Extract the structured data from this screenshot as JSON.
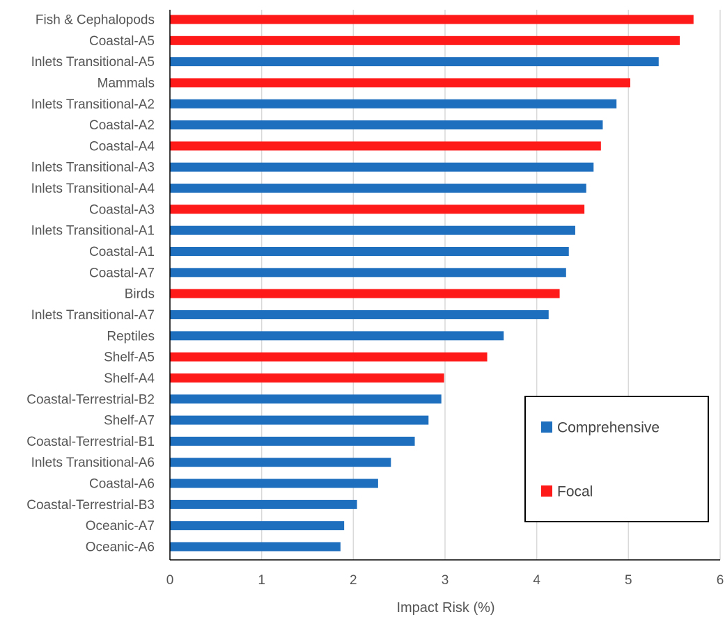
{
  "chart_data": {
    "type": "bar",
    "orientation": "horizontal",
    "title": "",
    "xlabel": "Impact Risk (%)",
    "ylabel": "",
    "xlim": [
      0,
      6
    ],
    "xticks": [
      0,
      1,
      2,
      3,
      4,
      5,
      6
    ],
    "grid": "vertical",
    "legend": {
      "placement": "bottom-right",
      "entries": [
        {
          "name": "Comprehensive",
          "color": "#1f6fbf"
        },
        {
          "name": "Focal",
          "color": "#ff1a1a"
        }
      ]
    },
    "categories": [
      "Fish & Cephalopods",
      "Coastal-A5",
      "Inlets Transitional-A5",
      "Mammals",
      "Inlets Transitional-A2",
      "Coastal-A2",
      "Coastal-A4",
      "Inlets Transitional-A3",
      "Inlets Transitional-A4",
      "Coastal-A3",
      "Inlets Transitional-A1",
      "Coastal-A1",
      "Coastal-A7",
      "Birds",
      "Inlets Transitional-A7",
      "Reptiles",
      "Shelf-A5",
      "Shelf-A4",
      "Coastal-Terrestrial-B2",
      "Shelf-A7",
      "Coastal-Terrestrial-B1",
      "Inlets Transitional-A6",
      "Coastal-A6",
      "Coastal-Terrestrial-B3",
      "Oceanic-A7",
      "Oceanic-A6"
    ],
    "values": [
      5.71,
      5.56,
      5.33,
      5.02,
      4.87,
      4.72,
      4.7,
      4.62,
      4.54,
      4.52,
      4.42,
      4.35,
      4.32,
      4.25,
      4.13,
      3.64,
      3.46,
      2.99,
      2.96,
      2.82,
      2.67,
      2.41,
      2.27,
      2.04,
      1.9,
      1.86
    ],
    "groups": [
      "Focal",
      "Focal",
      "Comprehensive",
      "Focal",
      "Comprehensive",
      "Comprehensive",
      "Focal",
      "Comprehensive",
      "Comprehensive",
      "Focal",
      "Comprehensive",
      "Comprehensive",
      "Comprehensive",
      "Focal",
      "Comprehensive",
      "Comprehensive",
      "Focal",
      "Focal",
      "Comprehensive",
      "Comprehensive",
      "Comprehensive",
      "Comprehensive",
      "Comprehensive",
      "Comprehensive",
      "Comprehensive",
      "Comprehensive"
    ]
  },
  "colors": {
    "comprehensive": "#1f6fbf",
    "focal": "#ff1a1a",
    "grid": "#d9d9d9",
    "axis": "#000000",
    "text": "#555555"
  }
}
